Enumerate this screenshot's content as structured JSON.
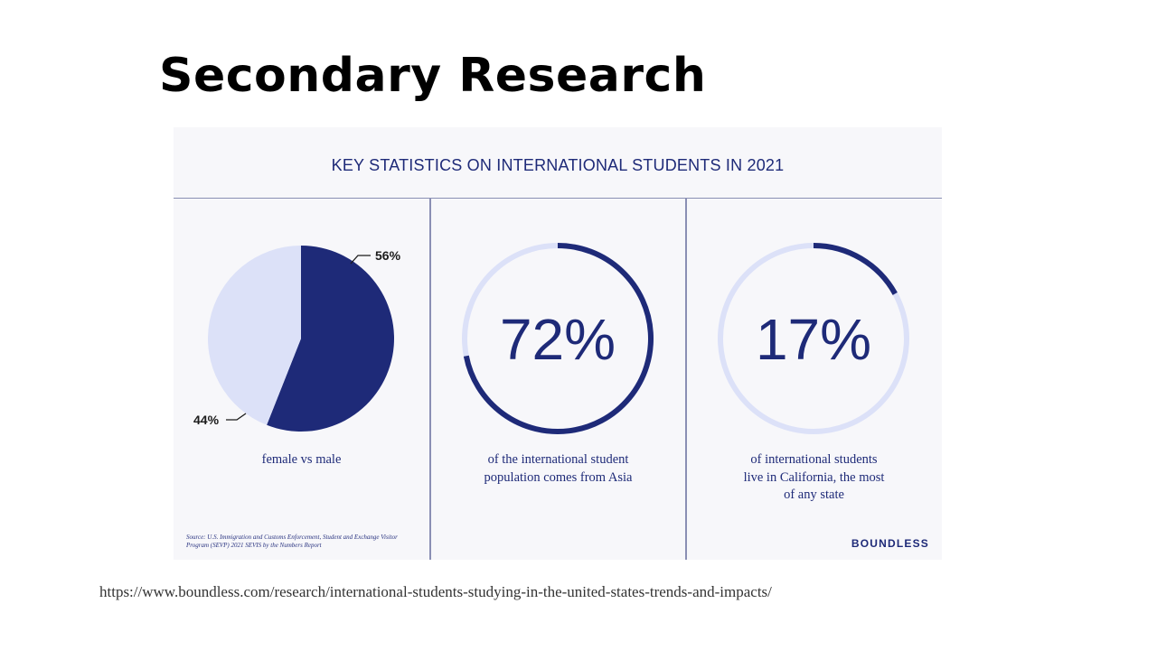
{
  "slide": {
    "title": "Secondary Research",
    "source_url": "https://www.boundless.com/research/international-students-studying-in-the-united-states-trends-and-impacts/"
  },
  "infographic": {
    "heading": "KEY STATISTICS ON INTERNATIONAL STUDENTS IN 2021",
    "source_note": "Source: U.S. Immigration and Customs Enforcement, Student and Exchange Visitor Program (SEVP) 2021 SEVIS by the Numbers Report",
    "brand": "BOUNDLESS"
  },
  "colors": {
    "accent": "#1e2a78",
    "light": "#dce1f8"
  },
  "chart_data": [
    {
      "type": "pie",
      "title": "",
      "caption": "female vs male",
      "slices": [
        {
          "value": 56,
          "label": "56%"
        },
        {
          "value": 44,
          "label": "44%"
        }
      ]
    },
    {
      "type": "gauge",
      "title": "",
      "value": 72,
      "label": "72%",
      "caption_lines": [
        "of the international student",
        "population comes from Asia"
      ]
    },
    {
      "type": "gauge",
      "title": "",
      "value": 17,
      "label": "17%",
      "caption_lines": [
        "of international students",
        "live in California, the most",
        "of any state"
      ]
    }
  ]
}
